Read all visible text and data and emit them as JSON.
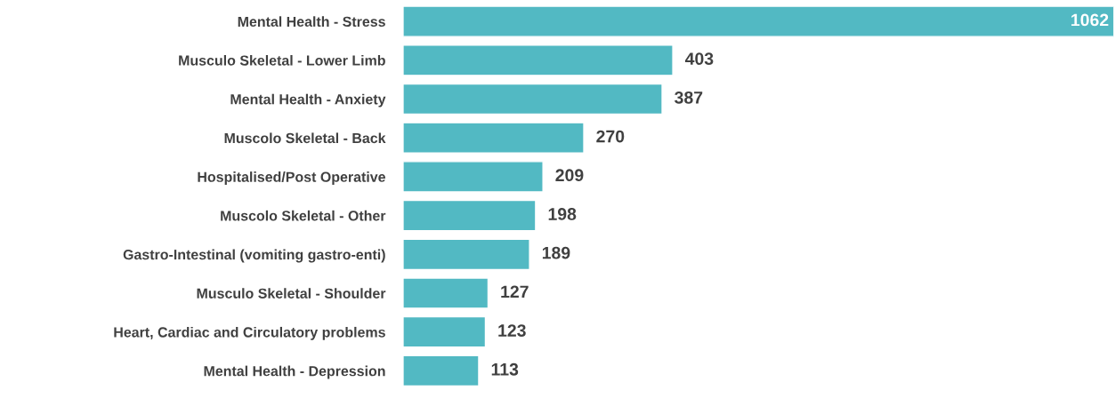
{
  "chart_data": {
    "type": "bar",
    "orientation": "horizontal",
    "data_labels": true,
    "color": "#52b9c3",
    "categories": [
      "Mental Health - Stress",
      "Musculo Skeletal - Lower Limb",
      "Mental Health - Anxiety",
      "Muscolo Skeletal - Back",
      "Hospitalised/Post Operative",
      "Muscolo Skeletal - Other",
      "Gastro-Intestinal (vomiting gastro-enti)",
      "Musculo Skeletal - Shoulder",
      "Heart, Cardiac and Circulatory problems",
      "Mental Health - Depression"
    ],
    "values": [
      1062,
      403,
      387,
      270,
      209,
      198,
      189,
      127,
      123,
      113
    ]
  }
}
